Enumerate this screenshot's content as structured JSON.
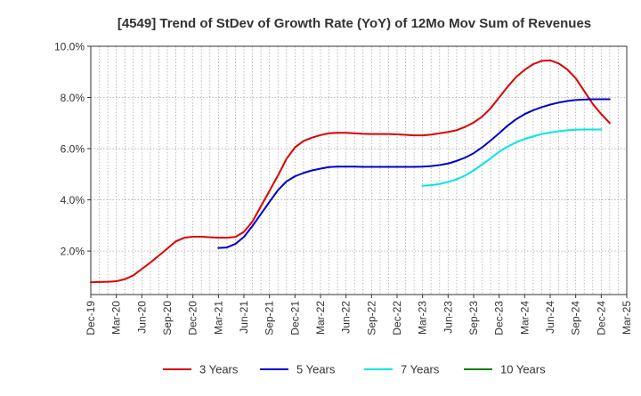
{
  "chart_data": {
    "type": "line",
    "title": "[4549]  Trend of StDev of Growth Rate (YoY) of 12Mo Mov Sum of Revenues",
    "xlabel": "",
    "ylabel": "",
    "ylim": [
      0.3,
      10.0
    ],
    "yticks": [
      2.0,
      4.0,
      6.0,
      8.0,
      10.0
    ],
    "ytick_labels": [
      "2.0%",
      "4.0%",
      "6.0%",
      "8.0%",
      "10.0%"
    ],
    "x_start": "Dec-19",
    "x_count_months": 63,
    "xtick_labels": [
      "Dec-19",
      "Mar-20",
      "Jun-20",
      "Sep-20",
      "Dec-20",
      "Mar-21",
      "Jun-21",
      "Sep-21",
      "Dec-21",
      "Mar-22",
      "Jun-22",
      "Sep-22",
      "Dec-22",
      "Mar-23",
      "Jun-23",
      "Sep-23",
      "Dec-23",
      "Mar-24",
      "Jun-24",
      "Sep-24",
      "Dec-24",
      "Mar-25"
    ],
    "grid": true,
    "legend_position": "bottom",
    "series": [
      {
        "name": "3 Years",
        "color": "#dd0000",
        "start_index": 0,
        "values": [
          0.78,
          0.79,
          0.8,
          0.82,
          0.9,
          1.05,
          1.3,
          1.55,
          1.82,
          2.1,
          2.38,
          2.52,
          2.56,
          2.56,
          2.54,
          2.52,
          2.52,
          2.55,
          2.75,
          3.15,
          3.75,
          4.35,
          4.95,
          5.6,
          6.05,
          6.3,
          6.43,
          6.53,
          6.6,
          6.62,
          6.62,
          6.6,
          6.58,
          6.57,
          6.57,
          6.57,
          6.56,
          6.54,
          6.52,
          6.52,
          6.55,
          6.6,
          6.65,
          6.72,
          6.85,
          7.02,
          7.25,
          7.58,
          8.0,
          8.42,
          8.8,
          9.08,
          9.3,
          9.43,
          9.45,
          9.33,
          9.1,
          8.75,
          8.25,
          7.75,
          7.35,
          7.0
        ]
      },
      {
        "name": "5 Years",
        "color": "#0000cc",
        "start_index": 15,
        "values": [
          2.12,
          2.14,
          2.28,
          2.55,
          2.98,
          3.45,
          3.92,
          4.38,
          4.72,
          4.92,
          5.05,
          5.15,
          5.22,
          5.28,
          5.3,
          5.3,
          5.3,
          5.29,
          5.29,
          5.29,
          5.29,
          5.29,
          5.29,
          5.29,
          5.3,
          5.32,
          5.36,
          5.42,
          5.52,
          5.65,
          5.82,
          6.05,
          6.32,
          6.6,
          6.9,
          7.15,
          7.35,
          7.5,
          7.62,
          7.72,
          7.8,
          7.86,
          7.9,
          7.92,
          7.93,
          7.93,
          7.93
        ]
      },
      {
        "name": "7 Years",
        "color": "#00e6e6",
        "start_index": 39,
        "values": [
          4.55,
          4.57,
          4.62,
          4.7,
          4.8,
          4.95,
          5.15,
          5.38,
          5.62,
          5.88,
          6.08,
          6.25,
          6.38,
          6.48,
          6.57,
          6.63,
          6.68,
          6.72,
          6.74,
          6.75,
          6.75,
          6.75
        ]
      },
      {
        "name": "10 Years",
        "color": "#008000",
        "start_index": 0,
        "values": []
      }
    ]
  }
}
